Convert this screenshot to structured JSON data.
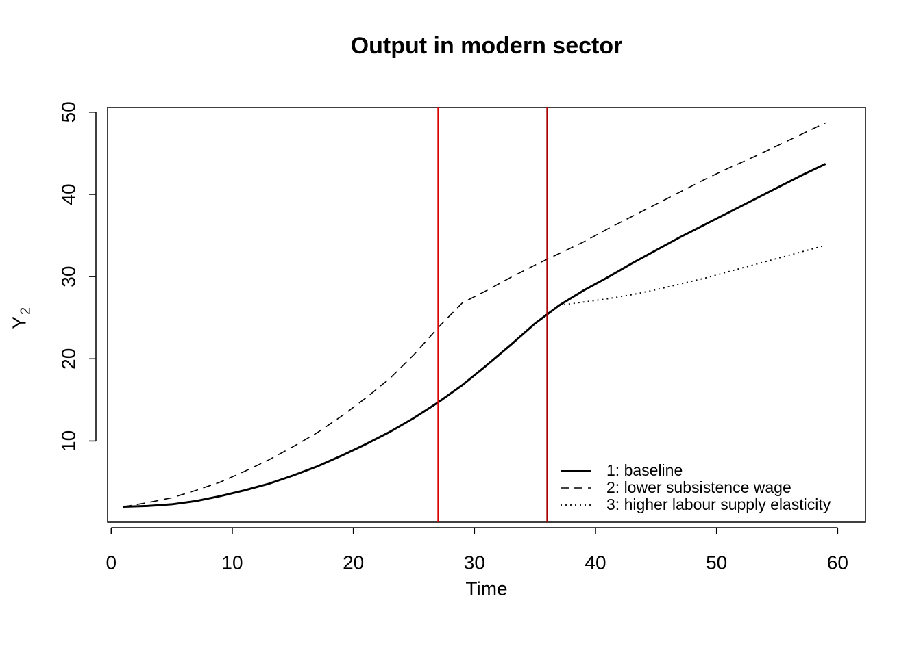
{
  "chart_data": {
    "type": "line",
    "title": "Output in  modern sector",
    "xlabel": "Time",
    "ylabel": {
      "text": "Y",
      "subscript": "2"
    },
    "x": [
      1,
      3,
      5,
      7,
      9,
      11,
      13,
      15,
      17,
      19,
      21,
      23,
      25,
      27,
      29,
      31,
      33,
      35,
      37,
      39,
      41,
      43,
      45,
      47,
      49,
      51,
      53,
      55,
      57,
      59
    ],
    "series": [
      {
        "name": "1: baseline",
        "color": "#000000",
        "dash": "solid",
        "width": 3,
        "values": [
          2.0,
          2.1,
          2.3,
          2.7,
          3.3,
          4.0,
          4.8,
          5.8,
          6.9,
          8.2,
          9.6,
          11.1,
          12.8,
          14.7,
          16.8,
          19.2,
          21.7,
          24.3,
          26.5,
          28.3,
          29.9,
          31.6,
          33.2,
          34.8,
          36.3,
          37.8,
          39.3,
          40.8,
          42.3,
          43.7
        ]
      },
      {
        "name": "2: lower subsistence wage",
        "color": "#000000",
        "dash": "dashed",
        "width": 1.6,
        "values": [
          2.0,
          2.5,
          3.1,
          4.0,
          5.0,
          6.3,
          7.7,
          9.3,
          11.0,
          13.0,
          15.2,
          17.6,
          20.5,
          23.8,
          26.8,
          28.3,
          29.9,
          31.4,
          32.8,
          34.2,
          35.8,
          37.3,
          38.8,
          40.3,
          41.8,
          43.2,
          44.5,
          45.9,
          47.3,
          48.7
        ]
      },
      {
        "name": "3: higher labour supply elasticity",
        "color": "#000000",
        "dash": "dotted",
        "width": 1.8,
        "values": [
          null,
          null,
          null,
          null,
          null,
          null,
          null,
          null,
          null,
          null,
          null,
          null,
          null,
          null,
          null,
          null,
          null,
          null,
          26.5,
          26.9,
          27.3,
          27.8,
          28.4,
          29.1,
          29.8,
          30.6,
          31.4,
          32.2,
          33.0,
          33.8
        ]
      }
    ],
    "vlines": [
      {
        "x": 27,
        "color": "#dd0000"
      },
      {
        "x": 36,
        "color": "#aa0000"
      }
    ],
    "xlim": [
      -0.3,
      62.3
    ],
    "ylim": [
      0.13,
      50.57
    ],
    "xticks": [
      0,
      10,
      20,
      30,
      40,
      50,
      60
    ],
    "yticks": [
      10,
      20,
      30,
      40,
      50
    ],
    "legend": "bottom-right"
  }
}
